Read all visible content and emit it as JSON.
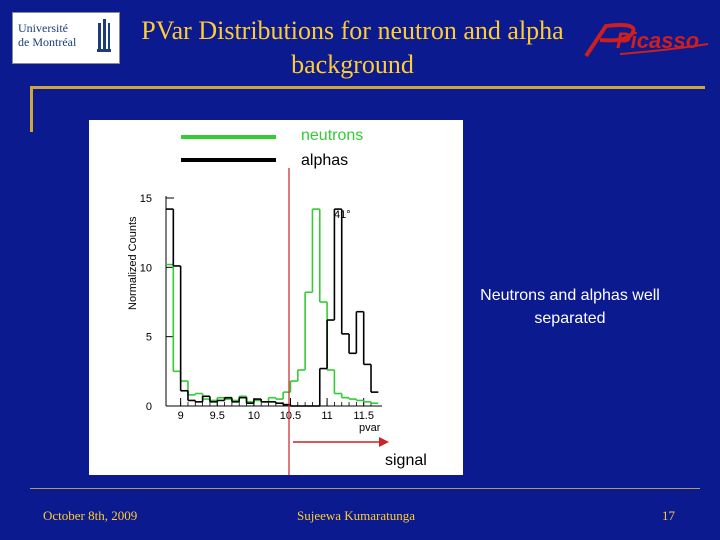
{
  "slide": {
    "title": "PVar Distributions for neutron and alpha background",
    "logo_left_line1": "Université",
    "logo_left_line2": "de Montréal",
    "logo_right": "Picasso",
    "note": "Neutrons and alphas well separated",
    "footer_date": "October 8th, 2009",
    "footer_author": "Sujeewa Kumaratunga",
    "footer_page": "17",
    "colors": {
      "background": "#0b1a8e",
      "title": "#ffcc33",
      "neutrons": "#33cc33",
      "alphas": "#000000",
      "cut": "#cc2222"
    }
  },
  "chart_data": {
    "type": "histogram",
    "ylabel": "Normalized Counts",
    "xlabel": "pvar",
    "xlim": [
      8.8,
      11.75
    ],
    "ylim": [
      0,
      15
    ],
    "xticks": [
      "9",
      "9.5",
      "10",
      "10.5",
      "11",
      "11.5"
    ],
    "yticks": [
      "0",
      "5",
      "10",
      "15"
    ],
    "bin_width": 0.1,
    "x_bin_starts": [
      8.8,
      8.9,
      9.0,
      9.1,
      9.2,
      9.3,
      9.4,
      9.5,
      9.6,
      9.7,
      9.8,
      9.9,
      10.0,
      10.1,
      10.2,
      10.3,
      10.4,
      10.5,
      10.6,
      10.7,
      10.8,
      10.9,
      11.0,
      11.1,
      11.2,
      11.3,
      11.4,
      11.5,
      11.6
    ],
    "series": [
      {
        "name": "neutrons",
        "color": "#33cc33",
        "values": [
          10.2,
          2.5,
          1.8,
          0.8,
          0.9,
          0.5,
          0.4,
          0.6,
          0.5,
          0.4,
          0.7,
          0.3,
          0.4,
          0.3,
          0.6,
          0.5,
          1.0,
          1.8,
          2.6,
          8.2,
          14.2,
          7.5,
          2.6,
          0.9,
          0.6,
          0.5,
          0.4,
          0.3,
          0.2
        ]
      },
      {
        "name": "alphas",
        "color": "#000000",
        "values": [
          14.2,
          10.1,
          1.1,
          0.4,
          0.3,
          0.7,
          0.3,
          0.4,
          0.6,
          0.3,
          0.6,
          0.2,
          0.5,
          0.3,
          0.3,
          0.2,
          0.1,
          0,
          0,
          0,
          0,
          2.7,
          6.2,
          14.2,
          5.2,
          3.8,
          6.8,
          3.0,
          1.0
        ]
      }
    ],
    "annotations": {
      "angle_label": "41°",
      "signal_label": "signal",
      "cut_x": 10.25
    },
    "legend": {
      "position": "top"
    }
  }
}
